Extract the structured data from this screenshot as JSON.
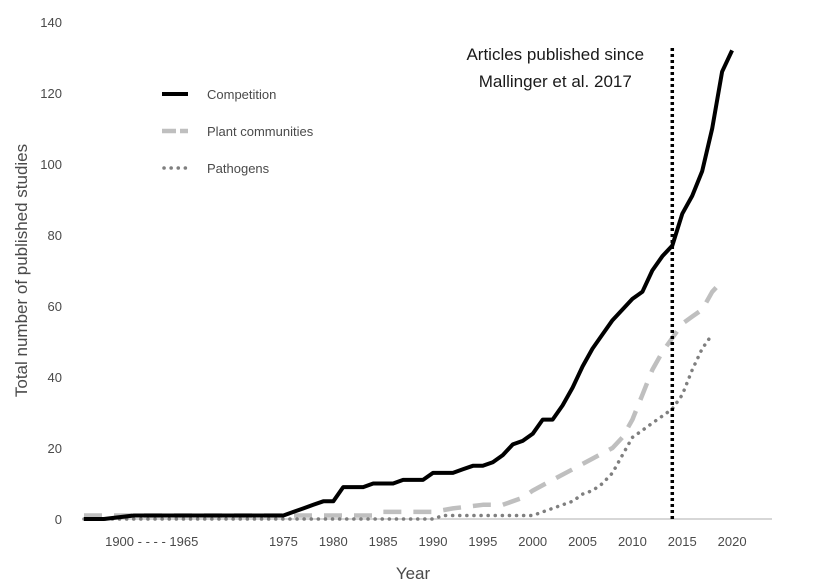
{
  "chart_data": {
    "type": "line",
    "xlabel": "Year",
    "ylabel": "Total number of published studies",
    "ylim": [
      0,
      140
    ],
    "y_ticks": [
      0,
      20,
      40,
      60,
      80,
      100,
      120,
      140
    ],
    "x_ticks": [
      {
        "label": "1900 - - - - 1965",
        "x": 1965
      },
      {
        "label": "1975",
        "x": 1975
      },
      {
        "label": "1980",
        "x": 1980
      },
      {
        "label": "1985",
        "x": 1985
      },
      {
        "label": "1990",
        "x": 1990
      },
      {
        "label": "1995",
        "x": 1995
      },
      {
        "label": "2000",
        "x": 2000
      },
      {
        "label": "2005",
        "x": 2005
      },
      {
        "label": "2010",
        "x": 2010
      },
      {
        "label": "2015",
        "x": 2015
      },
      {
        "label": "2020",
        "x": 2020
      }
    ],
    "xlim": [
      1955,
      2024
    ],
    "x_axis_break": "1900 - - - - 1965",
    "grid": false,
    "legend_position": "top-left",
    "series": [
      {
        "name": "Competition",
        "color": "#000000",
        "style": "solid",
        "points": [
          [
            1955,
            0
          ],
          [
            1957,
            0
          ],
          [
            1960,
            1
          ],
          [
            1965,
            1
          ],
          [
            1970,
            1
          ],
          [
            1975,
            1
          ],
          [
            1976,
            2
          ],
          [
            1977,
            3
          ],
          [
            1978,
            4
          ],
          [
            1979,
            5
          ],
          [
            1980,
            5
          ],
          [
            1981,
            9
          ],
          [
            1982,
            9
          ],
          [
            1983,
            9
          ],
          [
            1984,
            10
          ],
          [
            1985,
            10
          ],
          [
            1986,
            10
          ],
          [
            1987,
            11
          ],
          [
            1988,
            11
          ],
          [
            1989,
            11
          ],
          [
            1990,
            13
          ],
          [
            1991,
            13
          ],
          [
            1992,
            13
          ],
          [
            1993,
            14
          ],
          [
            1994,
            15
          ],
          [
            1995,
            15
          ],
          [
            1996,
            16
          ],
          [
            1997,
            18
          ],
          [
            1998,
            21
          ],
          [
            1999,
            22
          ],
          [
            2000,
            24
          ],
          [
            2001,
            28
          ],
          [
            2002,
            28
          ],
          [
            2003,
            32
          ],
          [
            2004,
            37
          ],
          [
            2005,
            43
          ],
          [
            2006,
            48
          ],
          [
            2007,
            52
          ],
          [
            2008,
            56
          ],
          [
            2009,
            59
          ],
          [
            2010,
            62
          ],
          [
            2011,
            64
          ],
          [
            2012,
            70
          ],
          [
            2013,
            74
          ],
          [
            2014,
            77
          ],
          [
            2015,
            86
          ],
          [
            2016,
            91
          ],
          [
            2017,
            98
          ],
          [
            2018,
            110
          ],
          [
            2019,
            126
          ],
          [
            2020,
            132
          ]
        ]
      },
      {
        "name": "Plant communities",
        "color": "#bfbfbf",
        "style": "dashed",
        "points": [
          [
            1955,
            1
          ],
          [
            1975,
            1
          ],
          [
            1980,
            1
          ],
          [
            1984,
            1
          ],
          [
            1985,
            2
          ],
          [
            1990,
            2
          ],
          [
            1992,
            3
          ],
          [
            1995,
            4
          ],
          [
            1997,
            4
          ],
          [
            1999,
            6
          ],
          [
            2000,
            8
          ],
          [
            2002,
            11
          ],
          [
            2004,
            14
          ],
          [
            2006,
            17
          ],
          [
            2008,
            20
          ],
          [
            2009,
            23
          ],
          [
            2010,
            28
          ],
          [
            2011,
            35
          ],
          [
            2012,
            42
          ],
          [
            2013,
            47
          ],
          [
            2014,
            51
          ],
          [
            2015,
            55
          ],
          [
            2016,
            57
          ],
          [
            2017,
            59
          ],
          [
            2018,
            64
          ],
          [
            2019,
            67
          ]
        ]
      },
      {
        "name": "Pathogens",
        "color": "#7f7f7f",
        "style": "dotted",
        "points": [
          [
            1955,
            0
          ],
          [
            1975,
            0
          ],
          [
            1980,
            0
          ],
          [
            1990,
            0
          ],
          [
            1991,
            1
          ],
          [
            1995,
            1
          ],
          [
            2000,
            1
          ],
          [
            2001,
            2
          ],
          [
            2002,
            3
          ],
          [
            2003,
            4
          ],
          [
            2004,
            5
          ],
          [
            2005,
            7
          ],
          [
            2006,
            8
          ],
          [
            2007,
            10
          ],
          [
            2008,
            13
          ],
          [
            2009,
            18
          ],
          [
            2010,
            23
          ],
          [
            2011,
            25
          ],
          [
            2012,
            27
          ],
          [
            2013,
            29
          ],
          [
            2014,
            31
          ],
          [
            2015,
            35
          ],
          [
            2016,
            42
          ],
          [
            2017,
            48
          ],
          [
            2018,
            52
          ]
        ]
      }
    ],
    "annotations": [
      {
        "type": "vertical-line",
        "x": 2014,
        "style": "dotted",
        "color": "#000000",
        "text_lines": [
          "Articles published since",
          "Mallinger et al. 2017"
        ]
      }
    ]
  }
}
